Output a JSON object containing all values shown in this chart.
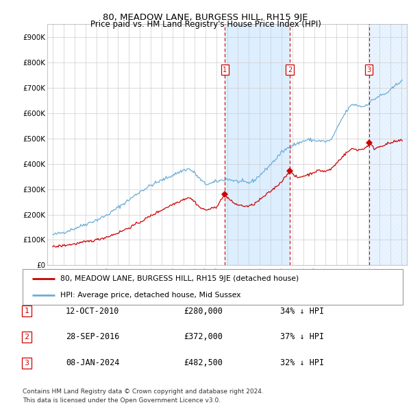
{
  "title": "80, MEADOW LANE, BURGESS HILL, RH15 9JE",
  "subtitle": "Price paid vs. HM Land Registry's House Price Index (HPI)",
  "hpi_label": "HPI: Average price, detached house, Mid Sussex",
  "property_label": "80, MEADOW LANE, BURGESS HILL, RH15 9JE (detached house)",
  "footer_line1": "Contains HM Land Registry data © Crown copyright and database right 2024.",
  "footer_line2": "This data is licensed under the Open Government Licence v3.0.",
  "transactions": [
    {
      "num": 1,
      "date": "12-OCT-2010",
      "price": "£280,000",
      "pct": "34% ↓ HPI",
      "year": 2010.79
    },
    {
      "num": 2,
      "date": "28-SEP-2016",
      "price": "£372,000",
      "pct": "37% ↓ HPI",
      "year": 2016.75
    },
    {
      "num": 3,
      "date": "08-JAN-2024",
      "price": "£482,500",
      "pct": "32% ↓ HPI",
      "year": 2024.03
    }
  ],
  "ylim": [
    0,
    950000
  ],
  "xlim_start": 1994.5,
  "xlim_end": 2027.5,
  "yticks": [
    0,
    100000,
    200000,
    300000,
    400000,
    500000,
    600000,
    700000,
    800000,
    900000
  ],
  "ytick_labels": [
    "£0",
    "£100K",
    "£200K",
    "£300K",
    "£400K",
    "£500K",
    "£600K",
    "£700K",
    "£800K",
    "£900K"
  ],
  "xticks": [
    1995,
    1996,
    1997,
    1998,
    1999,
    2000,
    2001,
    2002,
    2003,
    2004,
    2005,
    2006,
    2007,
    2008,
    2009,
    2010,
    2011,
    2012,
    2013,
    2014,
    2015,
    2016,
    2017,
    2018,
    2019,
    2020,
    2021,
    2022,
    2023,
    2024,
    2025,
    2026,
    2027
  ],
  "hpi_color": "#6baed6",
  "property_color": "#cc0000",
  "vline_color": "#cc0000",
  "shade_color": "#ddeeff",
  "hatch_color": "#aaccee",
  "num_box_color": "#cc0000",
  "grid_color": "#cccccc",
  "marker_color": "#cc0000",
  "hpi_anchors_x": [
    1995.0,
    1996.0,
    1997.0,
    1998.0,
    1999.0,
    2000.0,
    2001.0,
    2002.0,
    2003.0,
    2004.0,
    2005.0,
    2006.0,
    2007.0,
    2007.5,
    2008.0,
    2008.5,
    2009.0,
    2009.5,
    2010.0,
    2010.5,
    2011.0,
    2011.5,
    2012.0,
    2012.5,
    2013.0,
    2013.5,
    2014.0,
    2014.5,
    2015.0,
    2015.5,
    2016.0,
    2016.5,
    2017.0,
    2017.5,
    2018.0,
    2018.5,
    2019.0,
    2019.5,
    2020.0,
    2020.5,
    2021.0,
    2021.5,
    2022.0,
    2022.5,
    2023.0,
    2023.5,
    2024.0,
    2024.5,
    2025.0,
    2025.5,
    2026.0,
    2026.5,
    2027.0
  ],
  "hpi_anchors_y": [
    120000,
    130000,
    145000,
    162000,
    178000,
    198000,
    228000,
    258000,
    290000,
    315000,
    335000,
    355000,
    375000,
    380000,
    365000,
    340000,
    320000,
    322000,
    330000,
    335000,
    340000,
    335000,
    330000,
    328000,
    325000,
    335000,
    355000,
    375000,
    398000,
    420000,
    445000,
    460000,
    475000,
    480000,
    490000,
    495000,
    492000,
    490000,
    488000,
    492000,
    530000,
    575000,
    610000,
    635000,
    630000,
    625000,
    640000,
    655000,
    668000,
    675000,
    690000,
    710000,
    730000
  ],
  "prop_anchors_x": [
    1995.0,
    1996.0,
    1997.0,
    1998.0,
    1999.0,
    2000.0,
    2001.0,
    2002.0,
    2003.0,
    2004.0,
    2005.0,
    2006.0,
    2007.0,
    2007.5,
    2008.0,
    2008.5,
    2009.0,
    2009.5,
    2010.0,
    2010.5,
    2010.79,
    2011.0,
    2011.5,
    2012.0,
    2012.5,
    2013.0,
    2013.5,
    2014.0,
    2014.5,
    2015.0,
    2015.5,
    2016.0,
    2016.5,
    2016.75,
    2017.0,
    2017.5,
    2018.0,
    2018.5,
    2019.0,
    2019.5,
    2020.0,
    2020.5,
    2021.0,
    2021.5,
    2022.0,
    2022.5,
    2023.0,
    2023.5,
    2024.0,
    2024.03,
    2024.5,
    2025.0,
    2025.5,
    2026.0,
    2026.5,
    2027.0
  ],
  "prop_anchors_y": [
    72000,
    78000,
    84000,
    92000,
    100000,
    112000,
    128000,
    148000,
    170000,
    195000,
    218000,
    240000,
    260000,
    268000,
    252000,
    228000,
    218000,
    222000,
    230000,
    260000,
    280000,
    268000,
    248000,
    238000,
    234000,
    232000,
    242000,
    258000,
    275000,
    292000,
    310000,
    330000,
    358000,
    372000,
    358000,
    345000,
    352000,
    358000,
    368000,
    374000,
    370000,
    378000,
    400000,
    425000,
    445000,
    460000,
    455000,
    458000,
    475000,
    482500,
    460000,
    468000,
    476000,
    482000,
    488000,
    492000
  ]
}
